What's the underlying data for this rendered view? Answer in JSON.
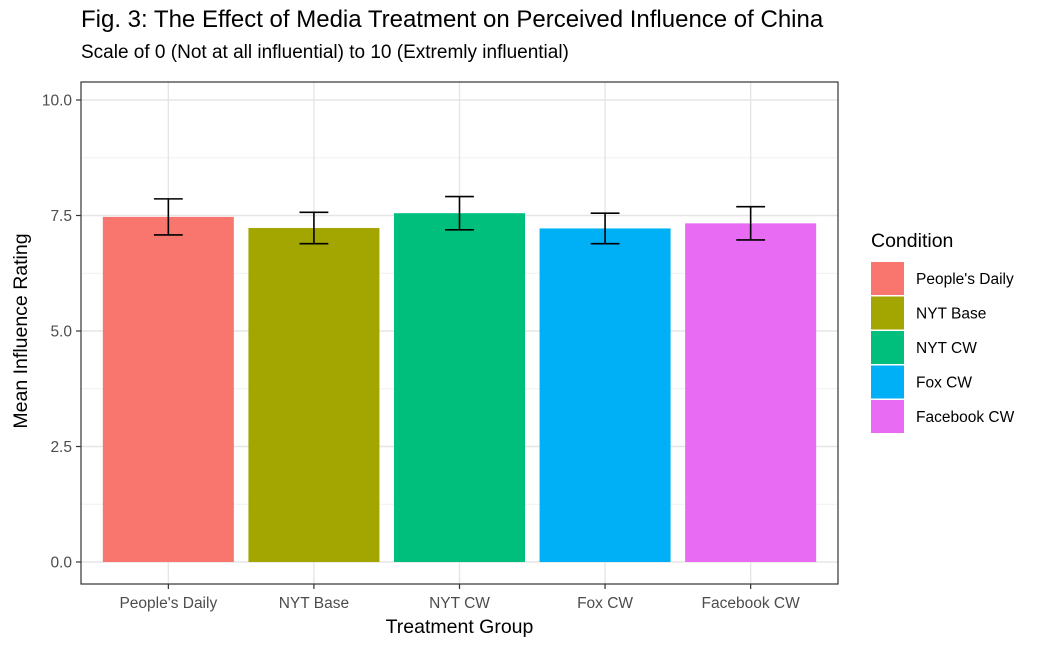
{
  "chart_data": {
    "type": "bar",
    "title": "Fig. 3: The Effect of Media Treatment on Perceived Influence of China",
    "subtitle": "Scale of 0 (Not at all influential) to 10 (Extremly influential)",
    "xlabel": "Treatment Group",
    "ylabel": "Mean Influence Rating",
    "categories": [
      "People's Daily",
      "NYT Base",
      "NYT CW",
      "Fox CW",
      "Facebook CW"
    ],
    "values": [
      7.47,
      7.23,
      7.55,
      7.22,
      7.33
    ],
    "error_low": [
      7.08,
      6.89,
      7.19,
      6.89,
      6.97
    ],
    "error_high": [
      7.86,
      7.57,
      7.91,
      7.55,
      7.69
    ],
    "colors": [
      "#F8766D",
      "#A3A500",
      "#00BF7D",
      "#00B0F6",
      "#E76BF3"
    ],
    "ylim": [
      0,
      10
    ],
    "yticks": [
      0,
      2.5,
      5,
      7.5,
      10
    ],
    "ytick_labels": [
      "0.0",
      "2.5",
      "5.0",
      "7.5",
      "10.0"
    ],
    "grid": true,
    "legend": {
      "title": "Condition",
      "position": "right",
      "entries": [
        "People's Daily",
        "NYT Base",
        "NYT CW",
        "Fox CW",
        "Facebook CW"
      ]
    }
  }
}
